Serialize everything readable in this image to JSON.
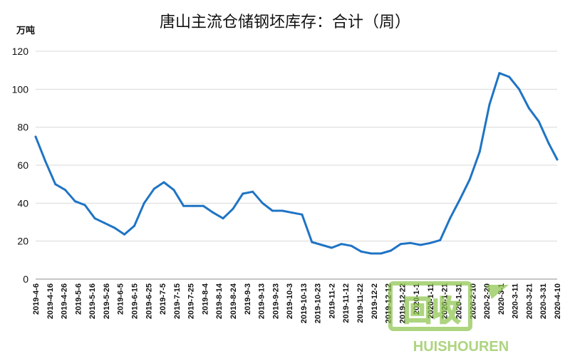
{
  "chart_data": {
    "type": "line",
    "title": "唐山主流仓储钢坯库存：合计（周）",
    "ylabel": "万吨",
    "ylim": [
      0,
      120
    ],
    "yticks": [
      0,
      20,
      40,
      60,
      80,
      100,
      120
    ],
    "grid": true,
    "legend": "none",
    "x": [
      "2019-4-6",
      "2019-4-16",
      "2019-4-26",
      "2019-5-6",
      "2019-5-16",
      "2019-5-26",
      "2019-6-5",
      "2019-6-15",
      "2019-6-25",
      "2019-7-5",
      "2019-7-15",
      "2019-7-25",
      "2019-8-4",
      "2019-8-14",
      "2019-8-24",
      "2019-9-3",
      "2019-9-13",
      "2019-9-23",
      "2019-10-3",
      "2019-10-13",
      "2019-10-23",
      "2019-11-2",
      "2019-11-12",
      "2019-11-22",
      "2019-12-2",
      "2019-12-12",
      "2019-12-22",
      "2020-1-1",
      "2020-1-11",
      "2020-1-21",
      "2020-1-31",
      "2020-2-10",
      "2020-2-20",
      "2020-3-1",
      "2020-3-11",
      "2020-3-21",
      "2020-3-31",
      "2020-4-10"
    ],
    "series": [
      {
        "points": [
          [
            "2019-4-6",
            75
          ],
          [
            "2019-4-13",
            62
          ],
          [
            "2019-4-20",
            50
          ],
          [
            "2019-4-27",
            47
          ],
          [
            "2019-5-4",
            41
          ],
          [
            "2019-5-11",
            39
          ],
          [
            "2019-5-18",
            32
          ],
          [
            "2019-5-25",
            29.5
          ],
          [
            "2019-6-1",
            27
          ],
          [
            "2019-6-8",
            23.5
          ],
          [
            "2019-6-15",
            28
          ],
          [
            "2019-6-22",
            40
          ],
          [
            "2019-6-29",
            47.5
          ],
          [
            "2019-7-6",
            51
          ],
          [
            "2019-7-13",
            47
          ],
          [
            "2019-7-20",
            38.5
          ],
          [
            "2019-7-27",
            38.5
          ],
          [
            "2019-8-3",
            38.5
          ],
          [
            "2019-8-10",
            35
          ],
          [
            "2019-8-17",
            32
          ],
          [
            "2019-8-24",
            37
          ],
          [
            "2019-8-31",
            45
          ],
          [
            "2019-9-7",
            46
          ],
          [
            "2019-9-14",
            40
          ],
          [
            "2019-9-21",
            36
          ],
          [
            "2019-9-28",
            36
          ],
          [
            "2019-10-5",
            35
          ],
          [
            "2019-10-12",
            34
          ],
          [
            "2019-10-19",
            19.5
          ],
          [
            "2019-10-26",
            18
          ],
          [
            "2019-11-2",
            16.5
          ],
          [
            "2019-11-9",
            18.5
          ],
          [
            "2019-11-16",
            17.5
          ],
          [
            "2019-11-23",
            14.5
          ],
          [
            "2019-11-30",
            13.5
          ],
          [
            "2019-12-7",
            13.5
          ],
          [
            "2019-12-14",
            15
          ],
          [
            "2019-12-21",
            18.5
          ],
          [
            "2019-12-28",
            19
          ],
          [
            "2020-1-4",
            18
          ],
          [
            "2020-1-11",
            19
          ],
          [
            "2020-1-18",
            20.5
          ],
          [
            "2020-1-25",
            32
          ],
          [
            "2020-2-1",
            42
          ],
          [
            "2020-2-8",
            52.5
          ],
          [
            "2020-2-15",
            67
          ],
          [
            "2020-2-22",
            92
          ],
          [
            "2020-2-29",
            108.5
          ],
          [
            "2020-3-7",
            106.5
          ],
          [
            "2020-3-14",
            100
          ],
          [
            "2020-3-21",
            90
          ],
          [
            "2020-3-28",
            83
          ],
          [
            "2020-4-4",
            71.5
          ],
          [
            "2020-4-10",
            63
          ]
        ]
      }
    ]
  },
  "watermark": {
    "main": "回收",
    "sub": "HUISHOUREN",
    "color": "#8bc34a"
  }
}
